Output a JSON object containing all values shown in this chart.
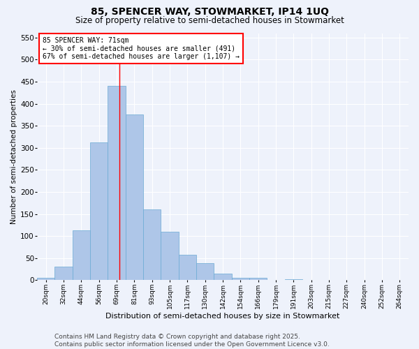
{
  "title": "85, SPENCER WAY, STOWMARKET, IP14 1UQ",
  "subtitle": "Size of property relative to semi-detached houses in Stowmarket",
  "xlabel": "Distribution of semi-detached houses by size in Stowmarket",
  "ylabel": "Number of semi-detached properties",
  "bar_color": "#aec6e8",
  "bar_edge_color": "#6aaad4",
  "background_color": "#eef2fb",
  "grid_color": "#ffffff",
  "bin_labels": [
    "20sqm",
    "32sqm",
    "44sqm",
    "56sqm",
    "69sqm",
    "81sqm",
    "93sqm",
    "105sqm",
    "117sqm",
    "130sqm",
    "142sqm",
    "154sqm",
    "166sqm",
    "179sqm",
    "191sqm",
    "203sqm",
    "215sqm",
    "227sqm",
    "240sqm",
    "252sqm",
    "264sqm"
  ],
  "bar_heights": [
    5,
    30,
    113,
    313,
    440,
    375,
    160,
    110,
    57,
    38,
    15,
    5,
    5,
    0,
    2,
    0,
    1,
    0,
    0,
    0,
    0
  ],
  "ylim": [
    0,
    560
  ],
  "yticks": [
    0,
    50,
    100,
    150,
    200,
    250,
    300,
    350,
    400,
    450,
    500,
    550
  ],
  "property_line_bin_index": 4.17,
  "annotation_title": "85 SPENCER WAY: 71sqm",
  "annotation_line1": "← 30% of semi-detached houses are smaller (491)",
  "annotation_line2": "67% of semi-detached houses are larger (1,107) →",
  "footer_line1": "Contains HM Land Registry data © Crown copyright and database right 2025.",
  "footer_line2": "Contains public sector information licensed under the Open Government Licence v3.0.",
  "title_fontsize": 10,
  "subtitle_fontsize": 8.5,
  "annotation_fontsize": 7,
  "footer_fontsize": 6.5,
  "ylabel_fontsize": 7.5,
  "xlabel_fontsize": 8,
  "ytick_fontsize": 7.5,
  "xtick_fontsize": 6.5
}
